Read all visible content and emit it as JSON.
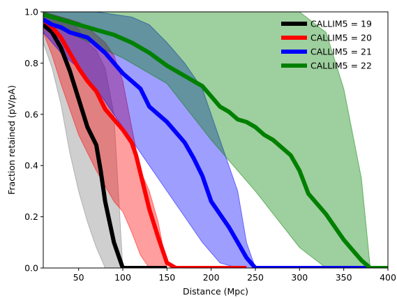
{
  "chart_data": {
    "type": "line",
    "title": "",
    "xlabel": "Distance (Mpc)",
    "ylabel": "Fraction retained (pV/pA)",
    "xlim": [
      10,
      400
    ],
    "ylim": [
      0.0,
      1.0
    ],
    "xticks": [
      50,
      100,
      150,
      200,
      250,
      300,
      350,
      400
    ],
    "yticks": [
      0.0,
      0.2,
      0.4,
      0.6,
      0.8,
      1.0
    ],
    "xtick_labels": [
      "50",
      "100",
      "150",
      "200",
      "250",
      "300",
      "350",
      "400"
    ],
    "ytick_labels": [
      "0.0",
      "0.2",
      "0.4",
      "0.6",
      "0.8",
      "1.0"
    ],
    "grid": false,
    "legend_position": "top-right",
    "series": [
      {
        "name": "CALLIM5 = 19",
        "color": "#000000",
        "band_color": "#808080",
        "x": [
          10,
          20,
          30,
          40,
          50,
          60,
          70,
          75,
          80,
          90,
          100,
          110,
          120,
          130,
          140,
          150
        ],
        "y": [
          0.95,
          0.92,
          0.86,
          0.77,
          0.66,
          0.55,
          0.48,
          0.38,
          0.26,
          0.1,
          0.0,
          0.0,
          0.0,
          0.0,
          0.0,
          0.0
        ],
        "band_x": [
          10,
          20,
          30,
          40,
          50,
          60,
          70,
          80,
          90,
          100
        ],
        "band_upper": [
          1.0,
          0.99,
          0.98,
          0.97,
          0.93,
          0.88,
          0.85,
          0.78,
          0.6,
          0.0
        ],
        "band_lower": [
          0.88,
          0.78,
          0.64,
          0.45,
          0.3,
          0.18,
          0.08,
          0.0,
          0.0,
          0.0
        ]
      },
      {
        "name": "CALLIM5 = 20",
        "color": "#ff0000",
        "band_color": "#ff0000",
        "x": [
          10,
          20,
          30,
          40,
          50,
          60,
          70,
          80,
          90,
          100,
          110,
          115,
          120,
          130,
          140,
          150,
          160,
          200,
          240
        ],
        "y": [
          0.97,
          0.94,
          0.9,
          0.84,
          0.78,
          0.73,
          0.69,
          0.62,
          0.58,
          0.54,
          0.49,
          0.44,
          0.37,
          0.23,
          0.12,
          0.02,
          0.0,
          0.0,
          0.0
        ],
        "band_x": [
          10,
          20,
          30,
          40,
          50,
          60,
          70,
          80,
          90,
          100,
          110,
          120,
          130,
          140,
          150
        ],
        "band_upper": [
          1.0,
          0.99,
          0.98,
          0.97,
          0.96,
          0.94,
          0.91,
          0.88,
          0.83,
          0.73,
          0.55,
          0.38,
          0.3,
          0.18,
          0.0
        ],
        "band_lower": [
          0.92,
          0.83,
          0.72,
          0.62,
          0.52,
          0.45,
          0.38,
          0.32,
          0.26,
          0.22,
          0.14,
          0.05,
          0.0,
          0.0,
          0.0
        ]
      },
      {
        "name": "CALLIM5 = 21",
        "color": "#0000ff",
        "band_color": "#0000ff",
        "x": [
          10,
          20,
          30,
          40,
          50,
          60,
          70,
          80,
          90,
          100,
          110,
          120,
          130,
          140,
          150,
          160,
          170,
          180,
          190,
          200,
          210,
          220,
          230,
          240,
          250,
          300,
          350,
          400
        ],
        "y": [
          0.97,
          0.95,
          0.94,
          0.92,
          0.91,
          0.9,
          0.87,
          0.84,
          0.8,
          0.76,
          0.73,
          0.7,
          0.63,
          0.6,
          0.57,
          0.53,
          0.49,
          0.43,
          0.36,
          0.26,
          0.21,
          0.16,
          0.1,
          0.04,
          0.0,
          0.0,
          0.0,
          0.0
        ],
        "band_x": [
          10,
          30,
          50,
          70,
          90,
          110,
          130,
          150,
          170,
          190,
          210,
          230,
          240,
          250
        ],
        "band_upper": [
          1.0,
          1.0,
          1.0,
          1.0,
          0.99,
          0.98,
          0.95,
          0.88,
          0.8,
          0.7,
          0.5,
          0.3,
          0.1,
          0.0
        ],
        "band_lower": [
          0.92,
          0.84,
          0.78,
          0.7,
          0.6,
          0.5,
          0.4,
          0.3,
          0.2,
          0.1,
          0.02,
          0.0,
          0.0,
          0.0
        ]
      },
      {
        "name": "CALLIM5 = 22",
        "color": "#008000",
        "band_color": "#008000",
        "x": [
          10,
          30,
          50,
          70,
          90,
          110,
          130,
          150,
          170,
          190,
          200,
          210,
          220,
          230,
          240,
          250,
          260,
          270,
          280,
          290,
          300,
          310,
          320,
          330,
          340,
          350,
          360,
          370,
          380,
          400
        ],
        "y": [
          0.99,
          0.97,
          0.95,
          0.93,
          0.91,
          0.88,
          0.84,
          0.79,
          0.75,
          0.71,
          0.67,
          0.63,
          0.61,
          0.58,
          0.57,
          0.55,
          0.52,
          0.5,
          0.47,
          0.44,
          0.38,
          0.29,
          0.25,
          0.21,
          0.16,
          0.11,
          0.07,
          0.03,
          0.0,
          0.0
        ],
        "band_x": [
          10,
          50,
          100,
          150,
          200,
          250,
          300,
          330,
          350,
          370,
          380
        ],
        "band_upper": [
          1.0,
          1.0,
          1.0,
          1.0,
          1.0,
          1.0,
          1.0,
          0.92,
          0.7,
          0.35,
          0.0
        ],
        "band_lower": [
          0.96,
          0.9,
          0.82,
          0.72,
          0.5,
          0.3,
          0.08,
          0.0,
          0.0,
          0.0,
          0.0
        ]
      }
    ]
  }
}
